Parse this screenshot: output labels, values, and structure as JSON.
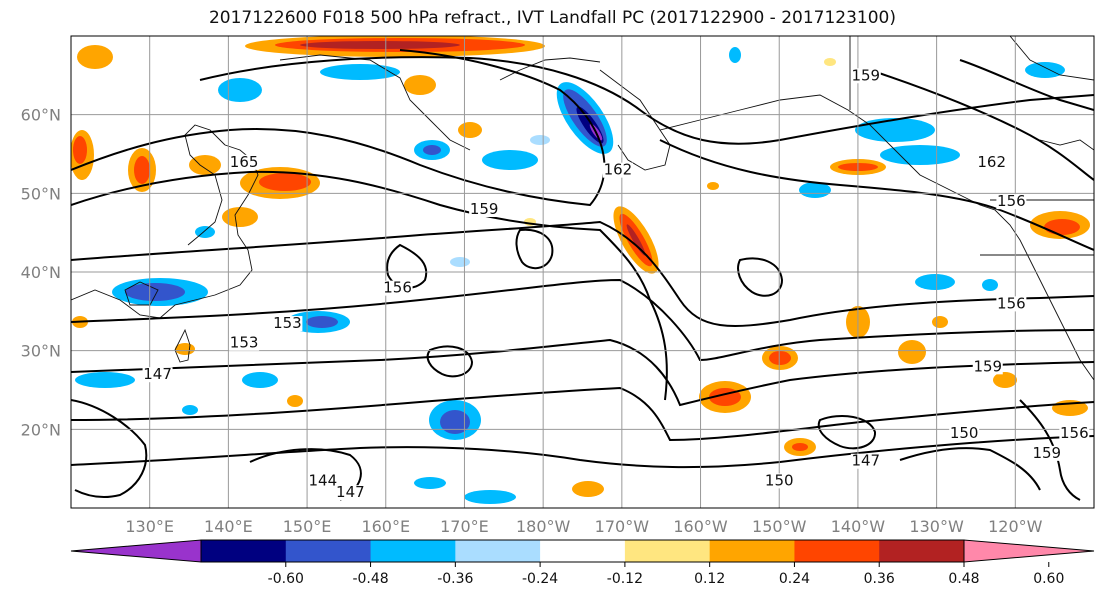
{
  "title": "2017122600 F018 500 hPa refract., IVT Landfall PC (2017122900 - 2017123100)",
  "map": {
    "lat_ticks": [
      {
        "value": 60,
        "label": "60°N"
      },
      {
        "value": 50,
        "label": "50°N"
      },
      {
        "value": 40,
        "label": "40°N"
      },
      {
        "value": 30,
        "label": "30°N"
      },
      {
        "value": 20,
        "label": "20°N"
      }
    ],
    "lon_ticks": [
      {
        "value": 130,
        "label": "130°E"
      },
      {
        "value": 140,
        "label": "140°E"
      },
      {
        "value": 150,
        "label": "150°E"
      },
      {
        "value": 160,
        "label": "160°E"
      },
      {
        "value": 170,
        "label": "170°E"
      },
      {
        "value": 180,
        "label": "180°W"
      },
      {
        "value": 190,
        "label": "170°W"
      },
      {
        "value": 200,
        "label": "160°W"
      },
      {
        "value": 210,
        "label": "150°W"
      },
      {
        "value": 220,
        "label": "140°W"
      },
      {
        "value": 230,
        "label": "130°W"
      },
      {
        "value": 240,
        "label": "120°W"
      }
    ],
    "lat_range": [
      10,
      70
    ],
    "lon_range": [
      120,
      250
    ],
    "grid": true,
    "contour_labels": [
      {
        "text": "165",
        "lon": 142,
        "lat": 53.5
      },
      {
        "text": "159",
        "lon": 172.5,
        "lat": 47.5
      },
      {
        "text": "156",
        "lon": 161.5,
        "lat": 37.5
      },
      {
        "text": "153",
        "lon": 147.5,
        "lat": 33
      },
      {
        "text": "153",
        "lon": 142,
        "lat": 30.5
      },
      {
        "text": "147",
        "lon": 131,
        "lat": 26.5
      },
      {
        "text": "162",
        "lon": 189.5,
        "lat": 52.5
      },
      {
        "text": "159",
        "lon": 221,
        "lat": 64.5
      },
      {
        "text": "162",
        "lon": 237,
        "lat": 53.5
      },
      {
        "text": "156",
        "lon": 239.5,
        "lat": 48.5
      },
      {
        "text": "156",
        "lon": 239.5,
        "lat": 35.5
      },
      {
        "text": "159",
        "lon": 236.5,
        "lat": 27.5
      },
      {
        "text": "150",
        "lon": 233.5,
        "lat": 19
      },
      {
        "text": "147",
        "lon": 221,
        "lat": 15.5
      },
      {
        "text": "159",
        "lon": 244,
        "lat": 16.5
      },
      {
        "text": "156",
        "lon": 247.5,
        "lat": 19
      },
      {
        "text": "144",
        "lon": 152,
        "lat": 13
      },
      {
        "text": "147",
        "lon": 155.5,
        "lat": 11.5
      },
      {
        "text": "150",
        "lon": 210,
        "lat": 13
      }
    ]
  },
  "colorbar": {
    "colors": [
      "#9933cc",
      "#000080",
      "#3355cc",
      "#00bbff",
      "#aaddff",
      "#ffffff",
      "#ffe680",
      "#ffa500",
      "#ff4500",
      "#b22222",
      "#ff88aa"
    ],
    "ticks": [
      "-0.60",
      "-0.48",
      "-0.36",
      "-0.24",
      "-0.12",
      "0.12",
      "0.24",
      "0.36",
      "0.48",
      "0.60"
    ],
    "extend": "both"
  }
}
